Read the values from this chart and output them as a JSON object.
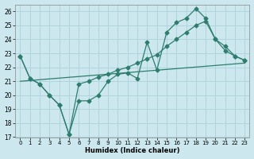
{
  "title": "",
  "xlabel": "Humidex (Indice chaleur)",
  "ylabel": "",
  "bg_color": "#cce8ee",
  "grid_color": "#b0d4dc",
  "line_color": "#2e7d6e",
  "ylim": [
    17,
    26.5
  ],
  "xlim": [
    -0.5,
    23.5
  ],
  "yticks": [
    17,
    18,
    19,
    20,
    21,
    22,
    23,
    24,
    25,
    26
  ],
  "xticks": [
    0,
    1,
    2,
    3,
    4,
    5,
    6,
    7,
    8,
    9,
    10,
    11,
    12,
    13,
    14,
    15,
    16,
    17,
    18,
    19,
    20,
    21,
    22,
    23
  ],
  "line1_x": [
    0,
    1,
    2,
    3,
    4,
    5,
    6,
    7,
    8,
    9,
    10,
    11,
    12,
    13,
    14,
    15,
    16,
    17,
    18,
    19,
    20,
    21,
    22,
    23
  ],
  "line1_y": [
    22.8,
    21.2,
    20.8,
    20.0,
    19.3,
    17.2,
    19.6,
    19.6,
    20.0,
    21.0,
    21.5,
    21.6,
    21.2,
    23.8,
    21.8,
    24.5,
    25.2,
    25.5,
    26.2,
    25.5,
    24.0,
    23.5,
    22.8,
    22.5
  ],
  "line2_x": [
    0,
    1,
    2,
    3,
    4,
    5,
    6,
    7,
    8,
    9,
    10,
    11,
    12,
    13,
    14,
    15,
    16,
    17,
    18,
    19,
    20,
    21,
    22,
    23
  ],
  "line2_y": [
    22.8,
    21.2,
    20.8,
    20.0,
    19.3,
    17.2,
    20.8,
    21.0,
    21.3,
    21.5,
    21.8,
    22.0,
    22.3,
    22.6,
    22.9,
    23.5,
    24.0,
    24.5,
    25.0,
    25.3,
    24.0,
    23.2,
    22.8,
    22.5
  ],
  "line3_x": [
    0,
    23
  ],
  "line3_y": [
    21.0,
    22.3
  ]
}
